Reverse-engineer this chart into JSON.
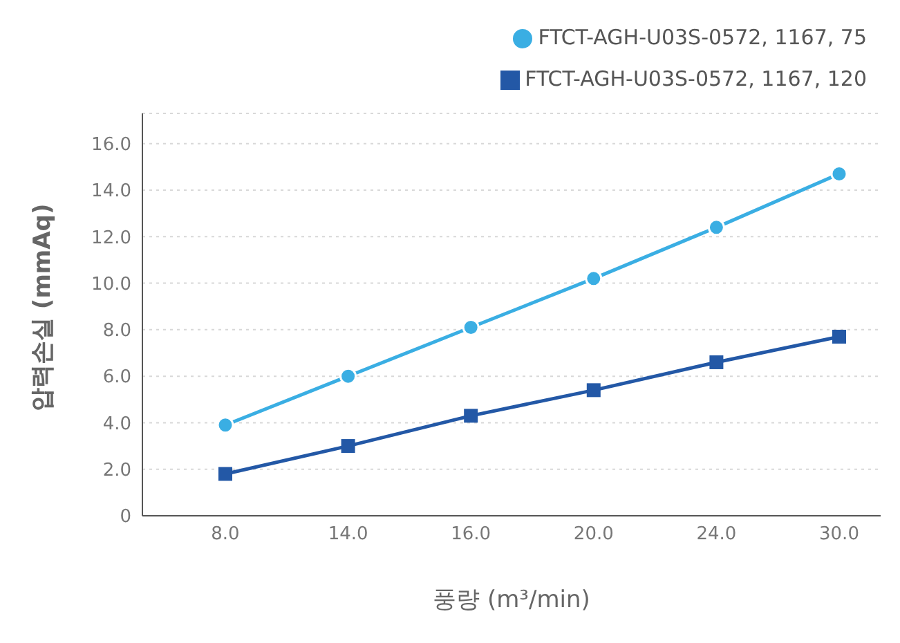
{
  "chart_data": {
    "type": "line",
    "xlabel": "풍량 (m³/min)",
    "ylabel": "압력손실 (mmAq)",
    "categories": [
      "8.0",
      "14.0",
      "16.0",
      "20.0",
      "24.0",
      "30.0"
    ],
    "series": [
      {
        "name": "FTCT-AGH-U03S-0572, 1167, 75",
        "color": "#3aaee3",
        "marker": "circle",
        "values": [
          3.9,
          6.0,
          8.1,
          10.2,
          12.4,
          14.7
        ]
      },
      {
        "name": "FTCT-AGH-U03S-0572, 1167, 120",
        "color": "#2358a6",
        "marker": "square",
        "values": [
          1.8,
          3.0,
          4.3,
          5.4,
          6.6,
          7.7
        ]
      }
    ],
    "ylim": [
      0,
      17.3
    ],
    "yticks": [
      {
        "value": 0,
        "label": "0"
      },
      {
        "value": 2,
        "label": "2.0"
      },
      {
        "value": 4,
        "label": "4.0"
      },
      {
        "value": 6,
        "label": "6.0"
      },
      {
        "value": 8,
        "label": "8.0"
      },
      {
        "value": 10,
        "label": "10.0"
      },
      {
        "value": 12,
        "label": "12.0"
      },
      {
        "value": 14,
        "label": "14.0"
      },
      {
        "value": 16,
        "label": "16.0"
      }
    ],
    "grid": "y",
    "legend": "top right"
  }
}
